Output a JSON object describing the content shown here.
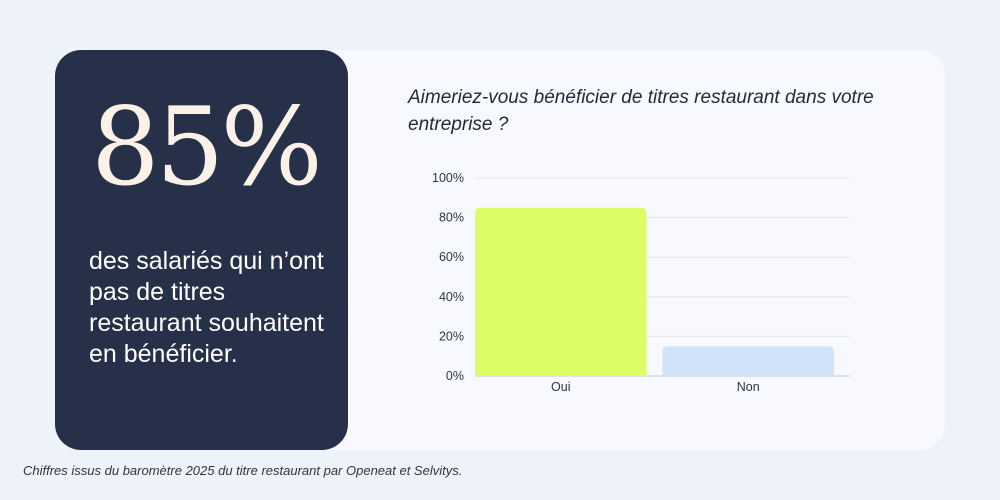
{
  "stat": {
    "value": "85%",
    "description": "des salariés qui n’ont pas de titres restaurant souhaitent en bénéficier."
  },
  "chart_data": {
    "type": "bar",
    "title": "Aimeriez-vous bénéficier de titres restaurant dans votre entreprise ?",
    "categories": [
      "Oui",
      "Non"
    ],
    "values": [
      85,
      15
    ],
    "ylim": [
      0,
      100
    ],
    "yticks": [
      "0%",
      "20%",
      "40%",
      "60%",
      "80%",
      "100%"
    ],
    "colors": [
      "#dcfd66",
      "#d3e2fb"
    ],
    "grid": true
  },
  "footnote": "Chiffres issus du baromètre 2025 du titre restaurant par Openeat et Selvitys."
}
